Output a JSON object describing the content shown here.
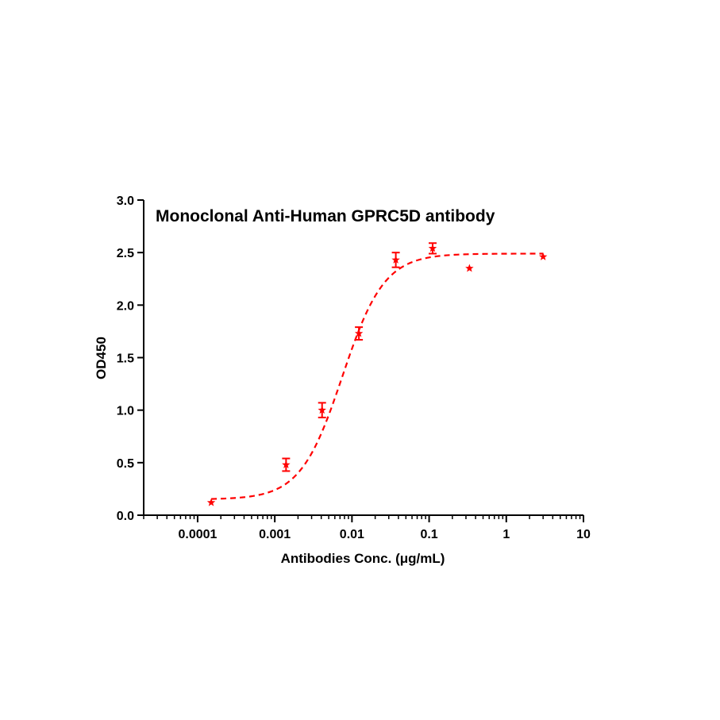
{
  "chart_data": {
    "type": "scatter",
    "title": "Monoclonal Anti-Human GPRC5D antibody",
    "xlabel": "Antibodies Conc. (μg/mL)",
    "ylabel": "OD450",
    "x_scale": "log",
    "xlim": [
      2e-05,
      10
    ],
    "ylim": [
      0,
      3.0
    ],
    "x_ticks": [
      0.0001,
      0.001,
      0.01,
      0.1,
      1,
      10
    ],
    "x_tick_labels": [
      "0.0001",
      "0.001",
      "0.01",
      "0.1",
      "1",
      "10"
    ],
    "y_ticks": [
      0,
      0.5,
      1.0,
      1.5,
      2.0,
      2.5,
      3.0
    ],
    "y_tick_labels": [
      "0.0",
      "0.5",
      "1.0",
      "1.5",
      "2.0",
      "2.5",
      "3.0"
    ],
    "grid": false,
    "legend": "none",
    "color": "#ff0000",
    "marker": "star",
    "fit": {
      "model": "4PL",
      "line_style": "dashed",
      "bottom": 0.15,
      "top": 2.49,
      "ec50": 0.0075,
      "hill": 1.6,
      "x_range": [
        0.00015,
        3.0
      ]
    },
    "series": [
      {
        "x": [
          0.00015,
          0.0014,
          0.0041,
          0.0123,
          0.037,
          0.111,
          0.333,
          3.0
        ],
        "y": [
          0.12,
          0.48,
          1.0,
          1.73,
          2.43,
          2.54,
          2.35,
          2.46
        ],
        "error": [
          0.0,
          0.06,
          0.07,
          0.06,
          0.07,
          0.05,
          0.0,
          0.0
        ]
      }
    ]
  }
}
